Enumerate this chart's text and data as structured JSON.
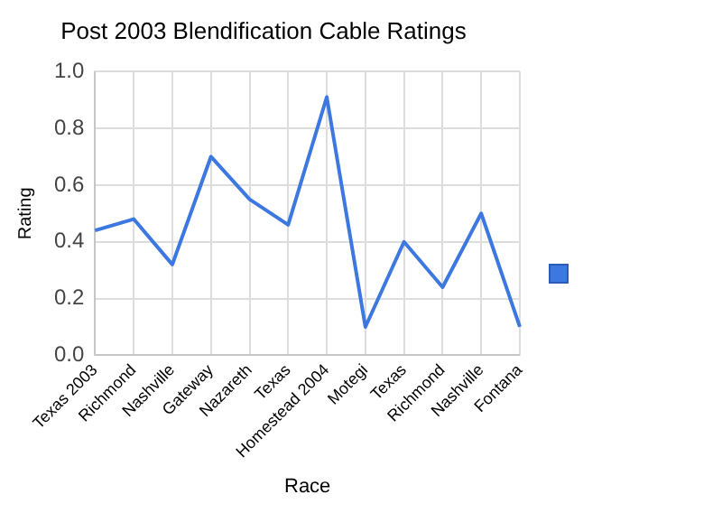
{
  "chart_data": {
    "type": "line",
    "title": "Post 2003 Blendification Cable Ratings",
    "xlabel": "Race",
    "ylabel": "Rating",
    "categories": [
      "Texas 2003",
      "Richmond",
      "Nashville",
      "Gateway",
      "Nazareth",
      "Texas",
      "Homestead 2004",
      "Motegi",
      "Texas",
      "Richmond",
      "Nashville",
      "Fontana"
    ],
    "series": [
      {
        "color": "#3c78e0",
        "values": [
          0.44,
          0.48,
          0.32,
          0.7,
          0.55,
          0.46,
          0.91,
          0.1,
          0.4,
          0.24,
          0.5,
          0.1
        ]
      }
    ],
    "ylim": [
      0,
      1
    ],
    "yticks": [
      {
        "value": 0,
        "label": "0.0"
      },
      {
        "value": 0.2,
        "label": "0.2"
      },
      {
        "value": 0.4,
        "label": "0.4"
      },
      {
        "value": 0.6,
        "label": "0.6"
      },
      {
        "value": 0.8,
        "label": "0.8"
      },
      {
        "value": 1,
        "label": "1.0"
      }
    ],
    "grid": true,
    "marker": "none",
    "line_style": "solid"
  }
}
